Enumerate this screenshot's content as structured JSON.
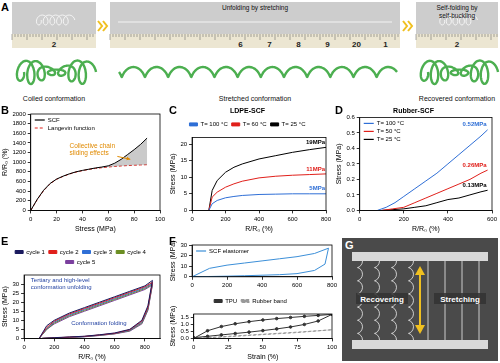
{
  "panel_a": {
    "label": "A",
    "frames": [
      {
        "ruler": [
          "2"
        ],
        "caption": "Coiled conformation"
      },
      {
        "heading": "Unfolding by stretching",
        "ruler": [
          "6",
          "7",
          "8",
          "9",
          "20",
          "1"
        ],
        "caption": "Stretched conformation"
      },
      {
        "heading": "Self-folding by self-buckling",
        "ruler": [
          "2"
        ],
        "caption": "Recovered conformation"
      }
    ]
  },
  "panel_g": {
    "label": "G",
    "texts": [
      "Recovering",
      "Stretching"
    ]
  },
  "chart_data": [
    {
      "panel": "B",
      "type": "line",
      "xlabel": "Stress (MPa)",
      "ylabel": "R/R₀ (%)",
      "x": [
        0,
        5,
        10,
        15,
        20,
        25,
        30,
        35,
        40,
        45,
        50,
        55,
        60,
        65,
        70,
        75,
        80,
        85,
        90
      ],
      "series": [
        {
          "name": "SCF",
          "color": "#000000",
          "line_style": "solid",
          "marker": "none",
          "values": [
            0,
            230,
            420,
            560,
            650,
            710,
            760,
            800,
            830,
            855,
            880,
            900,
            925,
            980,
            1060,
            1160,
            1260,
            1370,
            1500
          ]
        },
        {
          "name": "Langevin function",
          "color": "#e0201b",
          "line_style": "dashed",
          "marker": "none",
          "values": [
            0,
            220,
            410,
            550,
            645,
            705,
            755,
            795,
            825,
            850,
            870,
            885,
            900,
            912,
            922,
            930,
            937,
            943,
            948
          ]
        }
      ],
      "xlim": [
        0,
        100
      ],
      "xticks": [
        0,
        20,
        40,
        60,
        80,
        100
      ],
      "ylim": [
        0,
        2000
      ],
      "yticks": [
        0,
        200,
        400,
        600,
        800,
        1000,
        1200,
        1400,
        1600,
        1800,
        2000
      ],
      "grid": false,
      "legend": "upper left",
      "annotations": [
        "Collective chain sliding effects"
      ]
    },
    {
      "panel": "C",
      "type": "line",
      "title": "LDPE-SCF",
      "xlabel": "R/R₀ (%)",
      "ylabel": "Stress (MPa)",
      "series": [
        {
          "name": "T= 100 °C",
          "color": "#2f6fd6",
          "line_style": "solid",
          "marker": "none",
          "x": [
            100,
            120,
            150,
            200,
            250,
            300,
            400,
            500,
            600,
            700,
            800
          ],
          "values": [
            0,
            2,
            3,
            3.8,
            4.2,
            4.5,
            4.8,
            4.9,
            5,
            5,
            5
          ],
          "end_label": "5MPa"
        },
        {
          "name": "T= 60 °C",
          "color": "#e0201b",
          "line_style": "solid",
          "marker": "none",
          "x": [
            100,
            120,
            150,
            200,
            250,
            300,
            400,
            500,
            600,
            700,
            800
          ],
          "values": [
            0,
            4,
            5.5,
            7,
            8,
            8.8,
            9.8,
            10.3,
            10.6,
            10.8,
            11
          ],
          "end_label": "11MPa"
        },
        {
          "name": "T= 25 °C",
          "color": "#000000",
          "line_style": "solid",
          "marker": "none",
          "x": [
            100,
            120,
            150,
            200,
            250,
            300,
            400,
            500,
            600,
            700,
            800
          ],
          "values": [
            0,
            6,
            9,
            11.5,
            13,
            14,
            15.5,
            16.5,
            17.5,
            18.3,
            19
          ],
          "end_label": "19MPa"
        }
      ],
      "xlim": [
        0,
        800
      ],
      "xticks": [
        0,
        200,
        400,
        600,
        800
      ],
      "ylim": [
        0,
        22
      ],
      "yticks": [
        0,
        5,
        10,
        15,
        20
      ],
      "grid": false,
      "legend": "top"
    },
    {
      "panel": "D",
      "type": "line",
      "title": "Rubber-SCF",
      "xlabel": "R/R₀ (%)",
      "ylabel": "Stress (MPa)",
      "series": [
        {
          "name": "T= 100 °C",
          "color": "#2f6fd6",
          "line_style": "solid",
          "marker": "none",
          "x": [
            80,
            120,
            160,
            200,
            250,
            300,
            350,
            400,
            450,
            500,
            550,
            580
          ],
          "values": [
            0,
            0.02,
            0.05,
            0.09,
            0.14,
            0.19,
            0.24,
            0.3,
            0.36,
            0.42,
            0.48,
            0.52
          ],
          "end_label": "0.52MPa"
        },
        {
          "name": "T= 50 °C",
          "color": "#e0201b",
          "line_style": "solid",
          "marker": "none",
          "x": [
            100,
            150,
            200,
            250,
            300,
            350,
            400,
            450,
            500,
            550,
            580
          ],
          "values": [
            0,
            0.01,
            0.02,
            0.05,
            0.08,
            0.11,
            0.14,
            0.17,
            0.2,
            0.24,
            0.26
          ],
          "end_label": "0.26MPa"
        },
        {
          "name": "T= 25 °C",
          "color": "#000000",
          "line_style": "solid",
          "marker": "none",
          "x": [
            100,
            200,
            250,
            300,
            350,
            400,
            450,
            500,
            550,
            580
          ],
          "values": [
            0,
            0.01,
            0.02,
            0.03,
            0.05,
            0.07,
            0.08,
            0.1,
            0.12,
            0.13
          ],
          "end_label": "0.13MPa"
        }
      ],
      "xlim": [
        0,
        600
      ],
      "xticks": [
        0,
        200,
        400,
        600
      ],
      "ylim": [
        0,
        0.6
      ],
      "yticks": [
        {
          "value": 0,
          "label": "0.0"
        },
        0.1,
        0.2,
        0.3,
        0.4,
        0.5,
        0.6
      ],
      "grid": false,
      "legend": "upper left"
    },
    {
      "panel": "E",
      "type": "line",
      "xlabel": "R/R₀ (%)",
      "ylabel": "Stress (MPa)",
      "series": [
        {
          "name": "cycle 1",
          "color": "#1a1a5e",
          "line_style": "solid",
          "marker": "none",
          "x": [
            100,
            150,
            200,
            300,
            400,
            500,
            600,
            700,
            800,
            850,
            820,
            780,
            700,
            600,
            500,
            400,
            300,
            200,
            120
          ],
          "values": [
            0,
            7,
            10,
            14,
            17,
            20,
            23,
            26,
            29,
            32,
            18,
            10,
            5,
            3,
            2,
            1.2,
            0.8,
            0.4,
            0
          ]
        },
        {
          "name": "cycle 2",
          "color": "#e0201b",
          "line_style": "solid",
          "marker": "none",
          "x": [
            100,
            150,
            200,
            300,
            400,
            500,
            600,
            700,
            800,
            850,
            820,
            780,
            700,
            600,
            500,
            400,
            300,
            200,
            120
          ],
          "values": [
            0,
            6,
            9.5,
            13.5,
            16.5,
            19.5,
            22.5,
            25.5,
            28.5,
            31,
            17,
            9.5,
            4.8,
            2.8,
            1.9,
            1.1,
            0.7,
            0.3,
            0
          ]
        },
        {
          "name": "cycle 3",
          "color": "#2f6fd6",
          "line_style": "solid",
          "marker": "none",
          "x": [
            100,
            150,
            200,
            300,
            400,
            500,
            600,
            700,
            800,
            850,
            820,
            780,
            700,
            600,
            500,
            400,
            300,
            200,
            120
          ],
          "values": [
            0,
            5.5,
            9,
            13,
            16,
            19,
            22,
            25,
            28,
            30.5,
            16.5,
            9,
            4.5,
            2.7,
            1.8,
            1,
            0.6,
            0.3,
            0
          ]
        },
        {
          "name": "cycle 4",
          "color": "#6b8e23",
          "line_style": "solid",
          "marker": "none",
          "x": [
            100,
            150,
            200,
            300,
            400,
            500,
            600,
            700,
            800,
            850,
            820,
            780,
            700,
            600,
            500,
            400,
            300,
            200,
            120
          ],
          "values": [
            0,
            5,
            8.5,
            12.5,
            15.5,
            18.5,
            21.5,
            24.5,
            27.5,
            30,
            16,
            8.5,
            4.3,
            2.6,
            1.7,
            1,
            0.6,
            0.3,
            0
          ]
        },
        {
          "name": "cycle 5",
          "color": "#7b3f9e",
          "line_style": "solid",
          "marker": "none",
          "x": [
            100,
            150,
            200,
            300,
            400,
            500,
            600,
            700,
            800,
            850,
            820,
            780,
            700,
            600,
            500,
            400,
            300,
            200,
            120
          ],
          "values": [
            0,
            5,
            8,
            12,
            15,
            18,
            21,
            24,
            27,
            29.5,
            15.5,
            8,
            4,
            2.5,
            1.6,
            0.9,
            0.5,
            0.2,
            0
          ]
        }
      ],
      "xlim": [
        0,
        900
      ],
      "xticks": [
        0,
        200,
        400,
        600,
        800
      ],
      "ylim": [
        0,
        35
      ],
      "yticks": [
        0,
        5,
        10,
        15,
        20,
        25,
        30
      ],
      "grid": false,
      "legend": "top",
      "annotations": [
        "Tertiary and high-level conformation unfolding",
        "Conformation folding"
      ]
    },
    {
      "panel": "F",
      "type": "line",
      "ylabel": "Stress (MPa)",
      "series": [
        {
          "name": "SCF elastomer",
          "color": "#3c8fd8",
          "line_style": "solid",
          "marker": "none",
          "x": [
            0,
            100,
            200,
            300,
            400,
            500,
            600,
            700,
            780,
            760,
            700,
            600,
            500,
            400,
            300,
            200,
            100,
            0
          ],
          "values": [
            0,
            8,
            11,
            13,
            15,
            17,
            19,
            22,
            27,
            12,
            6,
            3,
            2,
            1.5,
            1,
            0.6,
            0.3,
            0
          ]
        }
      ],
      "xlim": [
        0,
        800
      ],
      "xticks": [
        0,
        200,
        400,
        600,
        800
      ],
      "ylim": [
        0,
        30
      ],
      "yticks": [
        0,
        10,
        20,
        30
      ],
      "grid": false,
      "legend": "upper left"
    },
    {
      "type": "line",
      "xlabel": "Strain (%)",
      "ylabel": "Stress (MPa)",
      "series": [
        {
          "name": "TPU",
          "color": "#333333",
          "line_style": "solid",
          "marker": "circle",
          "x": [
            0,
            10,
            20,
            30,
            40,
            50,
            60,
            70,
            80,
            90,
            100,
            90,
            80,
            70,
            60,
            50,
            40,
            30,
            20,
            10,
            0
          ],
          "values": [
            0,
            0.55,
            0.85,
            1.05,
            1.2,
            1.32,
            1.42,
            1.5,
            1.58,
            1.65,
            1.72,
            1.25,
            1.0,
            0.82,
            0.68,
            0.56,
            0.45,
            0.35,
            0.25,
            0.15,
            0.05
          ]
        },
        {
          "name": "Rubber band",
          "color": "#999999",
          "line_style": "dashed",
          "marker": "none",
          "x": [
            0,
            25,
            50,
            75,
            100,
            75,
            50,
            25,
            0
          ],
          "values": [
            0,
            0.15,
            0.3,
            0.45,
            0.62,
            0.42,
            0.27,
            0.12,
            0
          ]
        }
      ],
      "xlim": [
        0,
        100
      ],
      "xticks": [
        0,
        25,
        50,
        75,
        100
      ],
      "ylim": [
        0,
        1.75
      ],
      "yticks": [
        {
          "value": 0,
          "label": "0.0"
        },
        0.5,
        {
          "value": 1,
          "label": "1.0"
        },
        1.5
      ],
      "grid": false,
      "legend": "top"
    }
  ]
}
